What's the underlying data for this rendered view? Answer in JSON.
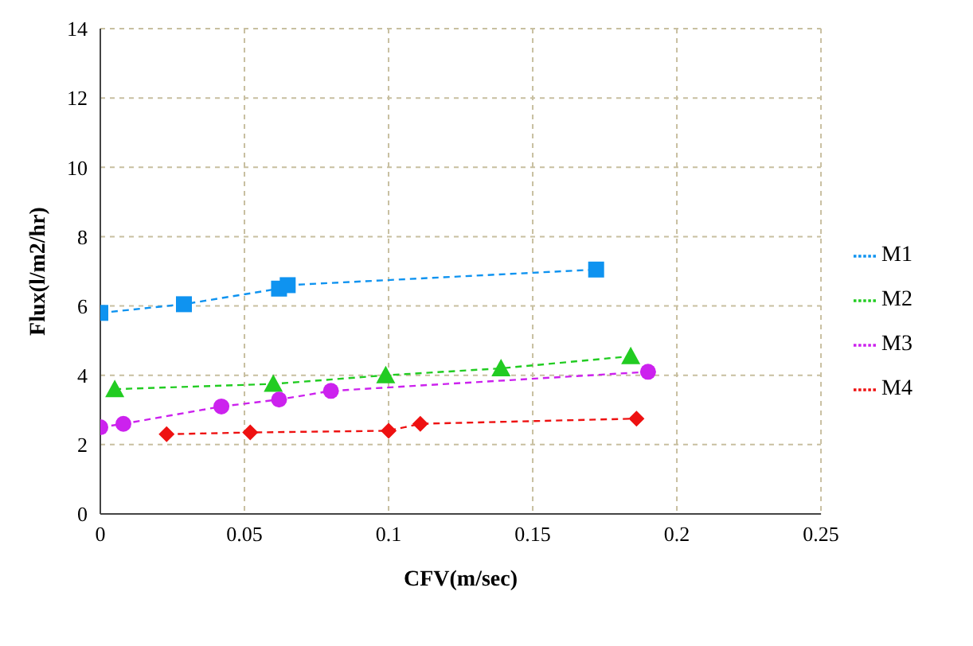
{
  "chart_data": {
    "type": "line",
    "xlabel": "CFV(m/sec)",
    "ylabel": "Flux(l/m2/hr)",
    "xlim": [
      0,
      0.25
    ],
    "xticks": [
      0,
      0.05,
      0.1,
      0.15,
      0.2,
      0.25
    ],
    "ylim": [
      0,
      14
    ],
    "yticks": [
      0,
      2,
      4,
      6,
      8,
      10,
      12,
      14
    ],
    "grid": true,
    "legend": "right",
    "line_style": "dashed",
    "series": [
      {
        "name": "M1",
        "color": "#0f93f0",
        "marker": "square",
        "x": [
          0,
          0.029,
          0.062,
          0.065,
          0.172
        ],
        "values": [
          5.8,
          6.05,
          6.5,
          6.6,
          7.05
        ]
      },
      {
        "name": "M2",
        "color": "#22cc22",
        "marker": "triangle",
        "x": [
          0.005,
          0.06,
          0.099,
          0.139,
          0.184
        ],
        "values": [
          3.6,
          3.75,
          4.0,
          4.2,
          4.55
        ]
      },
      {
        "name": "M3",
        "color": "#cc22ee",
        "marker": "circle",
        "x": [
          0,
          0.008,
          0.042,
          0.062,
          0.08,
          0.19
        ],
        "values": [
          2.5,
          2.6,
          3.1,
          3.3,
          3.55,
          4.1
        ]
      },
      {
        "name": "M4",
        "color": "#ee1111",
        "marker": "diamond",
        "x": [
          0.023,
          0.052,
          0.1,
          0.111,
          0.186
        ],
        "values": [
          2.3,
          2.35,
          2.4,
          2.6,
          2.75
        ]
      }
    ]
  }
}
